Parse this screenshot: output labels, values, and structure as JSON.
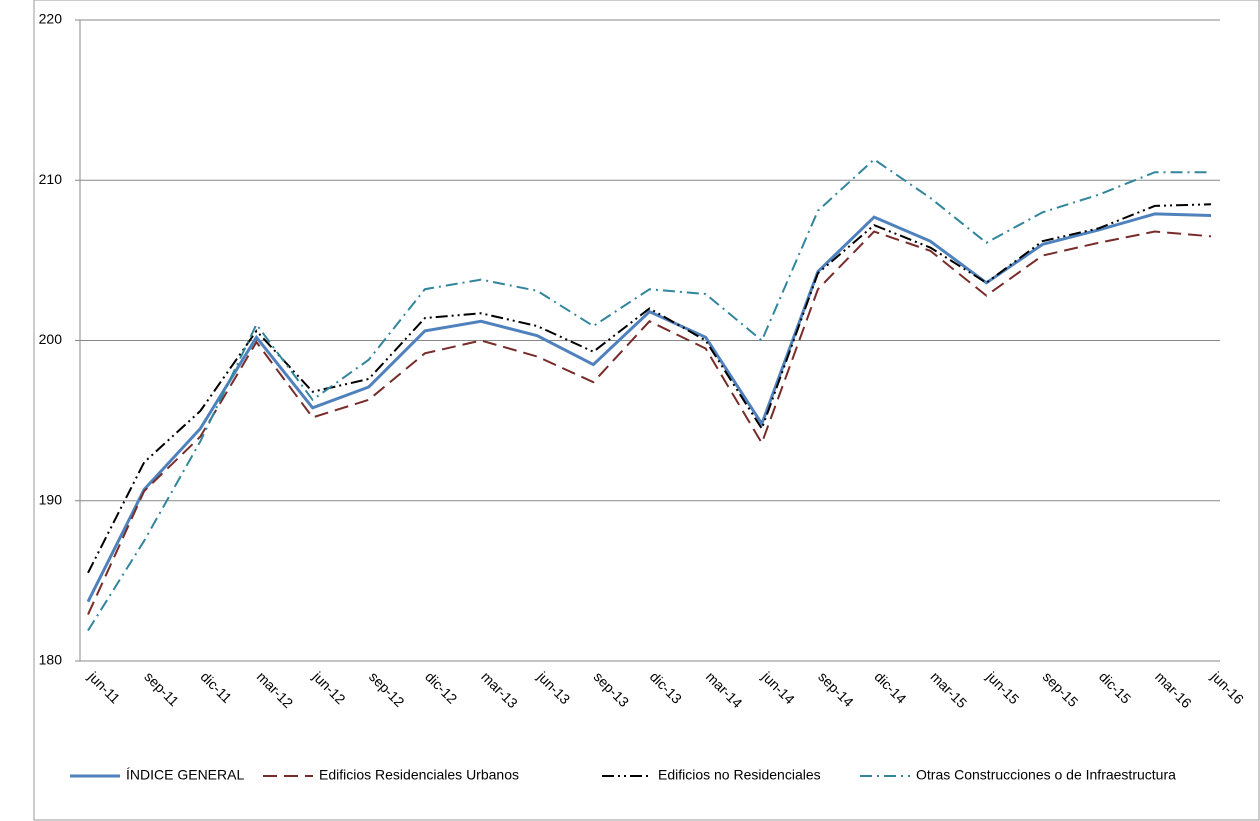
{
  "chart_data": {
    "type": "line",
    "categories": [
      "jun-11",
      "sep-11",
      "dic-11",
      "mar-12",
      "jun-12",
      "sep-12",
      "dic-12",
      "mar-13",
      "jun-13",
      "sep-13",
      "dic-13",
      "mar-14",
      "jun-14",
      "sep-14",
      "dic-14",
      "mar-15",
      "jun-15",
      "sep-15",
      "dic-15",
      "mar-16",
      "jun-16"
    ],
    "series": [
      {
        "name": "ÍNDICE GENERAL",
        "color": "#4f81bd",
        "line_style": "solid",
        "values": [
          183.7,
          190.7,
          194.5,
          200.2,
          195.8,
          197.1,
          200.6,
          201.2,
          200.3,
          198.5,
          201.8,
          200.2,
          194.8,
          204.3,
          207.7,
          206.2,
          203.6,
          206.0,
          206.9,
          207.9,
          207.8
        ]
      },
      {
        "name": "Edificios Residenciales Urbanos",
        "color": "#772c2a",
        "line_style": "dashed",
        "values": [
          182.9,
          190.6,
          194.0,
          199.9,
          195.2,
          196.3,
          199.2,
          200.0,
          199.0,
          197.4,
          201.2,
          199.5,
          193.6,
          203.2,
          206.8,
          205.6,
          202.8,
          205.3,
          206.1,
          206.8,
          206.5
        ]
      },
      {
        "name": "Edificios no Residenciales",
        "color": "#000000",
        "line_style": "dash-dot-dot",
        "values": [
          185.5,
          192.4,
          195.6,
          200.6,
          196.8,
          197.6,
          201.4,
          201.7,
          200.9,
          199.3,
          202.0,
          200.0,
          194.5,
          204.2,
          207.2,
          205.8,
          203.6,
          206.2,
          207.0,
          208.4,
          208.5
        ]
      },
      {
        "name": "Otras Construcciones o de Infraestructura",
        "color": "#31859c",
        "line_style": "dash-dot",
        "values": [
          181.9,
          187.5,
          193.7,
          201.0,
          196.3,
          198.8,
          203.2,
          203.8,
          203.1,
          200.9,
          203.2,
          202.9,
          200.0,
          208.1,
          211.3,
          208.9,
          206.1,
          208.0,
          209.1,
          210.5,
          210.5
        ]
      }
    ],
    "ylim": [
      180,
      220
    ],
    "yticks": [
      180,
      190,
      200,
      210,
      220
    ],
    "grid": true,
    "legend": "bottom"
  }
}
